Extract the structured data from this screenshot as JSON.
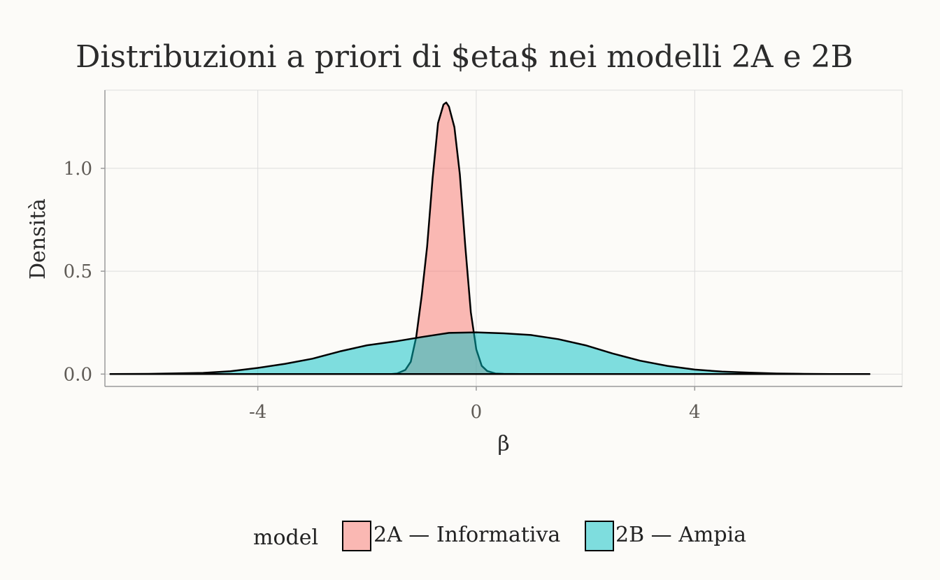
{
  "colors": {
    "background": "#fcfbf8",
    "grid": "#dcdcdc",
    "axis": "#9a9a9a",
    "series_2A": "#f8766d",
    "series_2B": "#00bfc4",
    "outline": "#000000"
  },
  "chart_data": {
    "type": "area",
    "title": "Distribuzioni a priori di $eta$ nei modelli 2A e 2B",
    "xlabel": "β",
    "ylabel": "Densità",
    "xlim": [
      -6.8,
      7.8
    ],
    "ylim": [
      -0.06,
      1.38
    ],
    "x_ticks": [
      -4,
      0,
      4
    ],
    "x_tick_labels": [
      "-4",
      "0",
      "4"
    ],
    "y_ticks": [
      0.0,
      0.5,
      1.0
    ],
    "y_tick_labels": [
      "0.0",
      "0.5",
      "1.0"
    ],
    "grid": true,
    "legend": {
      "position": "bottom",
      "title": "model",
      "entries": [
        "2A — Informativa",
        "2B — Ampia"
      ]
    },
    "series": [
      {
        "name": "2A — Informativa",
        "color": "#f8766d",
        "opacity": 0.5,
        "x": [
          -6.7,
          -1.55,
          -1.45,
          -1.3,
          -1.2,
          -1.1,
          -1.0,
          -0.9,
          -0.8,
          -0.7,
          -0.6,
          -0.55,
          -0.5,
          -0.45,
          -0.4,
          -0.3,
          -0.2,
          -0.1,
          0.0,
          0.1,
          0.2,
          0.35,
          0.5,
          0.8,
          7.2
        ],
        "y": [
          0.0,
          0.0,
          0.003,
          0.02,
          0.06,
          0.18,
          0.38,
          0.62,
          0.95,
          1.22,
          1.31,
          1.32,
          1.3,
          1.25,
          1.2,
          0.97,
          0.62,
          0.3,
          0.12,
          0.04,
          0.015,
          0.003,
          0.001,
          0.0,
          0.0
        ]
      },
      {
        "name": "2B — Ampia",
        "color": "#00bfc4",
        "opacity": 0.5,
        "x": [
          -6.7,
          -6.0,
          -5.0,
          -4.5,
          -4.0,
          -3.5,
          -3.0,
          -2.5,
          -2.0,
          -1.5,
          -1.0,
          -0.5,
          0.0,
          0.5,
          1.0,
          1.5,
          2.0,
          2.5,
          3.0,
          3.5,
          4.0,
          4.5,
          5.0,
          5.5,
          6.0,
          6.5,
          7.2
        ],
        "y": [
          0.0,
          0.001,
          0.006,
          0.014,
          0.03,
          0.05,
          0.075,
          0.11,
          0.14,
          0.158,
          0.18,
          0.2,
          0.203,
          0.198,
          0.19,
          0.17,
          0.14,
          0.1,
          0.065,
          0.04,
          0.022,
          0.012,
          0.007,
          0.003,
          0.001,
          0.0003,
          0.0
        ]
      }
    ]
  }
}
